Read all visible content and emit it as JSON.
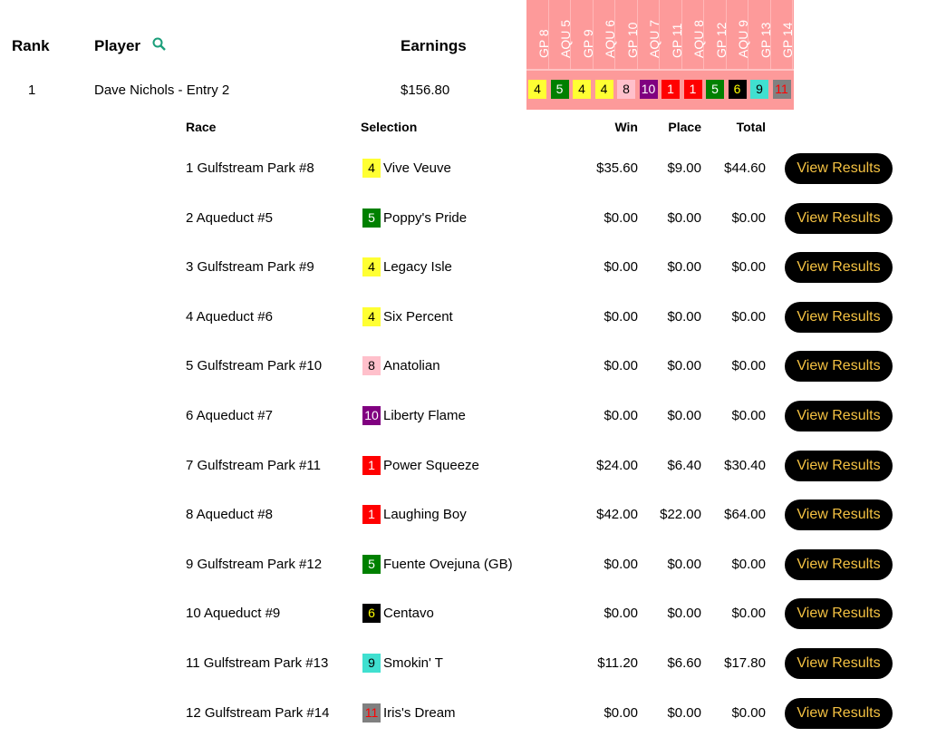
{
  "header": {
    "rank": "Rank",
    "player": "Player",
    "earnings": "Earnings",
    "search_icon": "magnifier-icon"
  },
  "races_header": [
    "GP 8",
    "AQU 5",
    "GP 9",
    "AQU 6",
    "GP 10",
    "AQU 7",
    "GP 11",
    "AQU 8",
    "GP 12",
    "AQU 9",
    "GP 13",
    "GP 14"
  ],
  "entry": {
    "rank": "1",
    "player": "Dave Nichols - Entry 2",
    "earnings": "$156.80"
  },
  "badge_colors": {
    "1": {
      "bg": "#ff0000",
      "fg": "#ffffff"
    },
    "4": {
      "bg": "#ffff33",
      "fg": "#000000"
    },
    "5": {
      "bg": "#008000",
      "fg": "#ffffff"
    },
    "6": {
      "bg": "#000000",
      "fg": "#ffff00"
    },
    "8": {
      "bg": "#ffc0cb",
      "fg": "#000000"
    },
    "9": {
      "bg": "#40e0d0",
      "fg": "#000000"
    },
    "10": {
      "bg": "#800080",
      "fg": "#ffffff"
    },
    "11": {
      "bg": "#808080",
      "fg": "#ff0000"
    }
  },
  "detail_header": {
    "race": "Race",
    "selection": "Selection",
    "win": "Win",
    "place": "Place",
    "total": "Total"
  },
  "button_label": "View Results",
  "rows": [
    {
      "race": "1 Gulfstream Park #8",
      "num": "4",
      "horse": "Vive Veuve",
      "win": "$35.60",
      "place": "$9.00",
      "total": "$44.60"
    },
    {
      "race": "2 Aqueduct #5",
      "num": "5",
      "horse": "Poppy's Pride",
      "win": "$0.00",
      "place": "$0.00",
      "total": "$0.00"
    },
    {
      "race": "3 Gulfstream Park #9",
      "num": "4",
      "horse": "Legacy Isle",
      "win": "$0.00",
      "place": "$0.00",
      "total": "$0.00"
    },
    {
      "race": "4 Aqueduct #6",
      "num": "4",
      "horse": "Six Percent",
      "win": "$0.00",
      "place": "$0.00",
      "total": "$0.00"
    },
    {
      "race": "5 Gulfstream Park #10",
      "num": "8",
      "horse": "Anatolian",
      "win": "$0.00",
      "place": "$0.00",
      "total": "$0.00"
    },
    {
      "race": "6 Aqueduct #7",
      "num": "10",
      "horse": "Liberty Flame",
      "win": "$0.00",
      "place": "$0.00",
      "total": "$0.00"
    },
    {
      "race": "7 Gulfstream Park #11",
      "num": "1",
      "horse": "Power Squeeze",
      "win": "$24.00",
      "place": "$6.40",
      "total": "$30.40"
    },
    {
      "race": "8 Aqueduct #8",
      "num": "1",
      "horse": "Laughing Boy",
      "win": "$42.00",
      "place": "$22.00",
      "total": "$64.00"
    },
    {
      "race": "9 Gulfstream Park #12",
      "num": "5",
      "horse": "Fuente Ovejuna (GB)",
      "win": "$0.00",
      "place": "$0.00",
      "total": "$0.00"
    },
    {
      "race": "10 Aqueduct #9",
      "num": "6",
      "horse": "Centavo",
      "win": "$0.00",
      "place": "$0.00",
      "total": "$0.00"
    },
    {
      "race": "11 Gulfstream Park #13",
      "num": "9",
      "horse": "Smokin' T",
      "win": "$11.20",
      "place": "$6.60",
      "total": "$17.80"
    },
    {
      "race": "12 Gulfstream Park #14",
      "num": "11",
      "horse": "Iris's Dream",
      "win": "$0.00",
      "place": "$0.00",
      "total": "$0.00"
    }
  ]
}
